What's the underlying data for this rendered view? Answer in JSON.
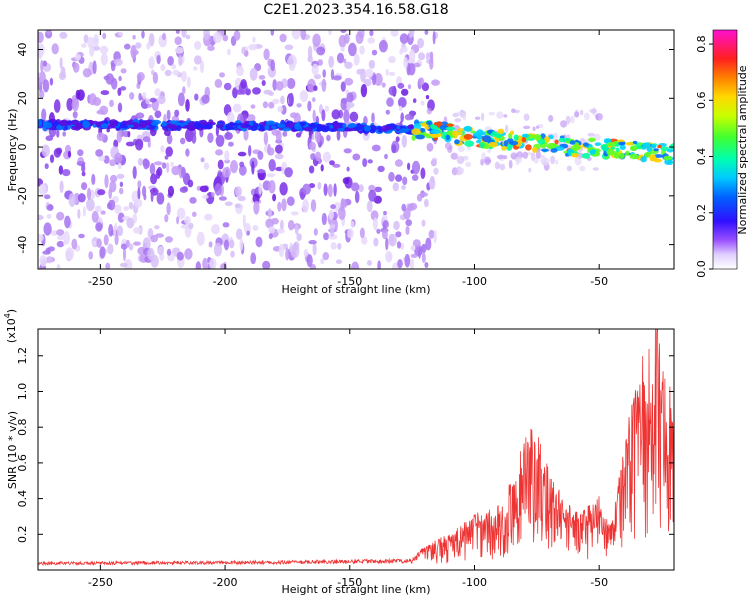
{
  "title": "C2E1.2023.354.16.58.G18",
  "chart_data": [
    {
      "type": "heatmap",
      "xlabel": "Height of straight line (km)",
      "ylabel": "Frequency (Hz)",
      "xlim": [
        -275,
        -20
      ],
      "ylim": [
        -50,
        48
      ],
      "x_ticks": [
        -250,
        -200,
        -150,
        -100,
        -50
      ],
      "y_ticks": [
        -40,
        -20,
        0,
        20,
        40
      ],
      "colorbar": {
        "label": "Normalized spectral amplitude",
        "range": [
          0.0,
          0.85
        ],
        "ticks": [
          0.0,
          0.2,
          0.4,
          0.6,
          0.8
        ]
      },
      "dominant_track": [
        {
          "x": -275,
          "y": 9
        },
        {
          "x": -250,
          "y": 9
        },
        {
          "x": -200,
          "y": 9
        },
        {
          "x": -150,
          "y": 8
        },
        {
          "x": -120,
          "y": 7
        },
        {
          "x": -100,
          "y": 4
        },
        {
          "x": -80,
          "y": 2
        },
        {
          "x": -60,
          "y": 0
        },
        {
          "x": -40,
          "y": -1
        },
        {
          "x": -20,
          "y": -3
        }
      ],
      "noise_region_end_x": -120
    },
    {
      "type": "line",
      "xlabel": "Height of straight line (km)",
      "ylabel": "SNR (10 * v/v)",
      "y_scale_label": "(x10",
      "y_scale_exp": "4",
      "y_scale_close": ")",
      "xlim": [
        -275,
        -20
      ],
      "ylim": [
        0,
        13500
      ],
      "x_ticks": [
        -250,
        -200,
        -150,
        -100,
        -50
      ],
      "y_ticks": [
        0.2,
        0.4,
        0.6,
        0.8,
        1.0,
        1.2
      ],
      "y_tick_labels": [
        "0.2",
        "0.4",
        "0.6",
        "0.8",
        "1.0",
        "1.2"
      ],
      "series_color": "#ee3333",
      "envelope": [
        {
          "x": -275,
          "y": 400
        },
        {
          "x": -200,
          "y": 450
        },
        {
          "x": -150,
          "y": 500
        },
        {
          "x": -125,
          "y": 550
        },
        {
          "x": -118,
          "y": 1500
        },
        {
          "x": -110,
          "y": 2000
        },
        {
          "x": -100,
          "y": 3000
        },
        {
          "x": -90,
          "y": 3500
        },
        {
          "x": -85,
          "y": 5000
        },
        {
          "x": -80,
          "y": 7000
        },
        {
          "x": -77,
          "y": 8500
        },
        {
          "x": -72,
          "y": 6000
        },
        {
          "x": -65,
          "y": 4000
        },
        {
          "x": -58,
          "y": 3000
        },
        {
          "x": -50,
          "y": 4000
        },
        {
          "x": -45,
          "y": 2500
        },
        {
          "x": -40,
          "y": 7000
        },
        {
          "x": -35,
          "y": 11000
        },
        {
          "x": -30,
          "y": 12000
        },
        {
          "x": -27,
          "y": 13500
        },
        {
          "x": -24,
          "y": 11000
        },
        {
          "x": -20,
          "y": 9000
        }
      ]
    }
  ],
  "colors": {
    "line": "#ee3333",
    "axes": "#000000",
    "noise": "#8a2be2"
  }
}
